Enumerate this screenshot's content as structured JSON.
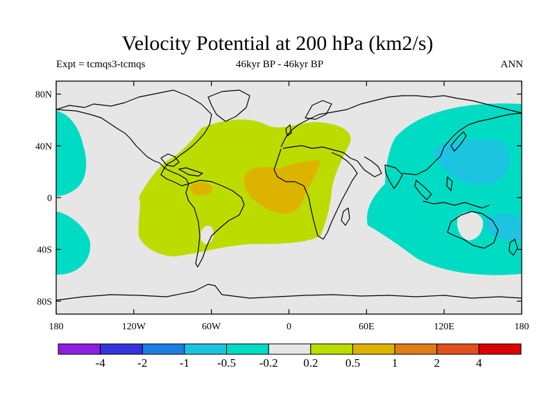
{
  "title": "Velocity Potential at 200 hPa (km2/s)",
  "subtitle_left": "Expt = tcmqs3-tcmqs",
  "subtitle_center": "46kyr BP - 46kyr BP",
  "subtitle_right": "ANN",
  "map": {
    "projection": "cylindrical-equidistant",
    "lon_range": [
      -180,
      180
    ],
    "lat_range": [
      -90,
      90
    ],
    "y_tick_labels": [
      "80N",
      "40N",
      "0",
      "40S",
      "80S"
    ],
    "x_tick_labels": [
      "180",
      "120W",
      "60W",
      "0",
      "60E",
      "120E",
      "180"
    ],
    "background_color": "#e6e6e6",
    "coastline_color": "#000000"
  },
  "colorbar": {
    "labels": [
      "-4",
      "-2",
      "-1",
      "-0.5",
      "-0.2",
      "0.2",
      "0.5",
      "1",
      "2",
      "4"
    ],
    "colors": [
      "#8f1ee0",
      "#3434dc",
      "#1c7ee0",
      "#1cc4e0",
      "#00dcc4",
      "#e6e6e6",
      "#bcdc00",
      "#dcb400",
      "#e07c18",
      "#e0501c",
      "#dc0000"
    ]
  },
  "chart_data": {
    "type": "map",
    "title": "Velocity Potential at 200 hPa (km2/s)",
    "variable": "velocity potential",
    "level": "200 hPa",
    "units": "km2/s",
    "season": "ANN",
    "contour_levels": [
      -4,
      -2,
      -1,
      -0.5,
      -0.2,
      0.2,
      0.5,
      1,
      2,
      4
    ],
    "regions": [
      {
        "name": "western-pacific-negative",
        "band": "-0.5 to -0.2",
        "color": "#00dcc4"
      },
      {
        "name": "japan-pacific-minimum",
        "band": "-1 to -0.5",
        "color": "#1cc4e0"
      },
      {
        "name": "australia-east-minimum",
        "band": "-1 to -0.5",
        "color": "#1cc4e0"
      },
      {
        "name": "east-pacific-west-negative",
        "band": "-0.5 to -0.2",
        "color": "#00dcc4"
      },
      {
        "name": "southeast-pacific-negative",
        "band": "-0.5 to -0.2",
        "color": "#00dcc4"
      },
      {
        "name": "atlantic-africa-positive",
        "band": "0.2 to 0.5",
        "color": "#bcdc00"
      },
      {
        "name": "africa-maximum",
        "band": "0.5 to 1",
        "color": "#dcb400"
      },
      {
        "name": "northern-south-america-maximum",
        "band": "0.5 to 1",
        "color": "#dcb400"
      }
    ]
  }
}
